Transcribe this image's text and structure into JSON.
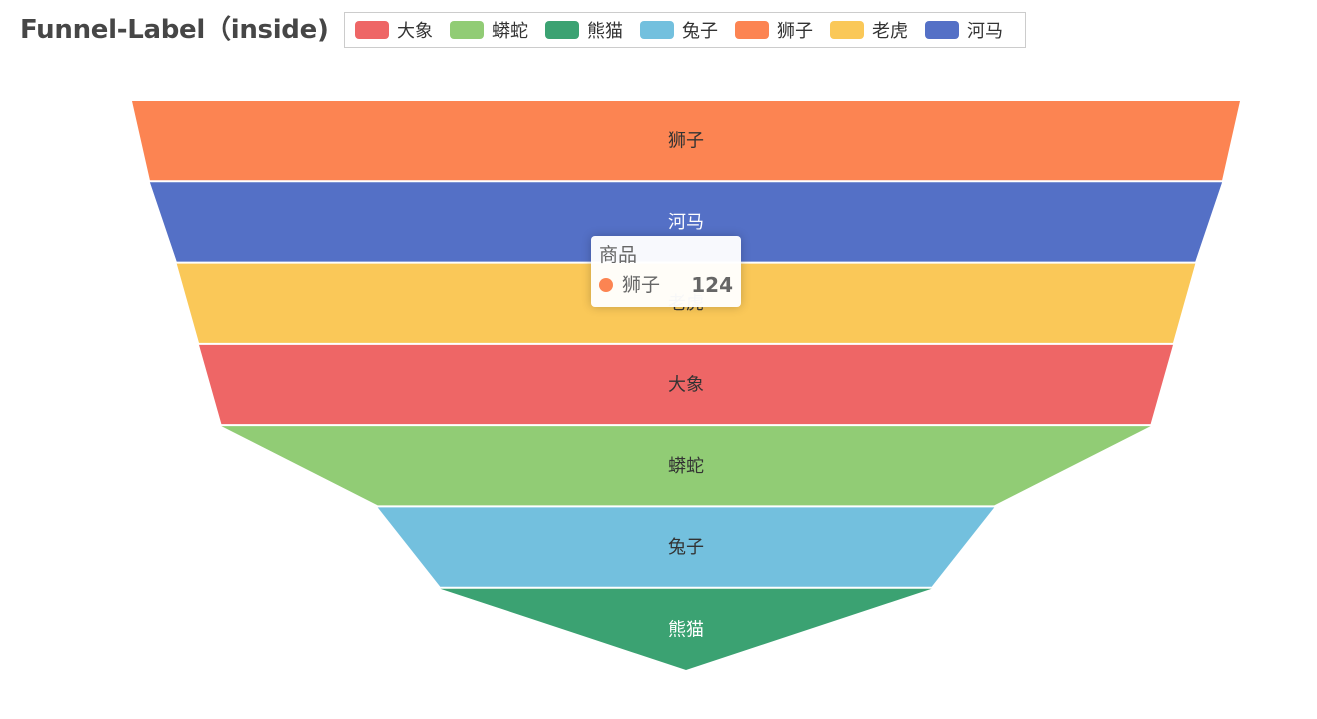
{
  "chart_data": {
    "type": "funnel",
    "title": "Funnel-Label（inside)",
    "legend": {
      "placement": "top",
      "items": [
        {
          "name": "大象",
          "color": "#ee6666"
        },
        {
          "name": "蟒蛇",
          "color": "#91cc75"
        },
        {
          "name": "熊猫",
          "color": "#3ba272"
        },
        {
          "name": "兔子",
          "color": "#73c0de"
        },
        {
          "name": "狮子",
          "color": "#fc8452"
        },
        {
          "name": "老虎",
          "color": "#fac858"
        },
        {
          "name": "河马",
          "color": "#5470c6"
        }
      ]
    },
    "series": [
      {
        "name": "商品",
        "label_position": "inside",
        "sort": "descending",
        "data": [
          {
            "name": "狮子",
            "value": 124,
            "color": "#fc8452",
            "label_color": "#333333"
          },
          {
            "name": "河马",
            "value": 120,
            "color": "#5470c6",
            "label_color": "#ffffff"
          },
          {
            "name": "老虎",
            "value": 114,
            "color": "#fac858",
            "label_color": "#333333"
          },
          {
            "name": "大象",
            "value": 109,
            "color": "#ee6666",
            "label_color": "#333333"
          },
          {
            "name": "蟒蛇",
            "value": 104,
            "color": "#91cc75",
            "label_color": "#333333"
          },
          {
            "name": "兔子",
            "value": 69,
            "color": "#73c0de",
            "label_color": "#333333"
          },
          {
            "name": "熊猫",
            "value": 55,
            "color": "#3ba272",
            "label_color": "#ffffff"
          }
        ]
      }
    ],
    "min_value": 0,
    "max_value": 124
  },
  "tooltip": {
    "title": "商品",
    "name": "狮子",
    "value": "124",
    "color": "#fc8452"
  }
}
